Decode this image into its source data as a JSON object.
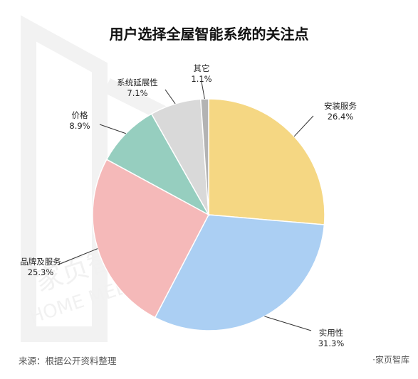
{
  "chart_data": {
    "type": "pie",
    "title": "用户选择全屋智能系统的关注点",
    "slices": [
      {
        "label": "安装服务",
        "value": 26.4,
        "value_text": "26.4%",
        "color": "#f5d783"
      },
      {
        "label": "实用性",
        "value": 31.3,
        "value_text": "31.3%",
        "color": "#abcff3"
      },
      {
        "label": "品牌及服务",
        "value": 25.3,
        "value_text": "25.3%",
        "color": "#f5b9b9"
      },
      {
        "label": "价格",
        "value": 8.9,
        "value_text": "8.9%",
        "color": "#96cebf"
      },
      {
        "label": "系统延展性",
        "value": 7.1,
        "value_text": "7.1%",
        "color": "#d9d9d9"
      },
      {
        "label": "其它",
        "value": 1.1,
        "value_text": "1.1%",
        "color": "#b3b3b3"
      }
    ],
    "legend": "none"
  },
  "footer": {
    "source": "来源：根据公开资料整理",
    "brand": "·家页智库"
  },
  "watermark": {
    "cn": "家页智库",
    "en": "HOME MEDIA"
  }
}
